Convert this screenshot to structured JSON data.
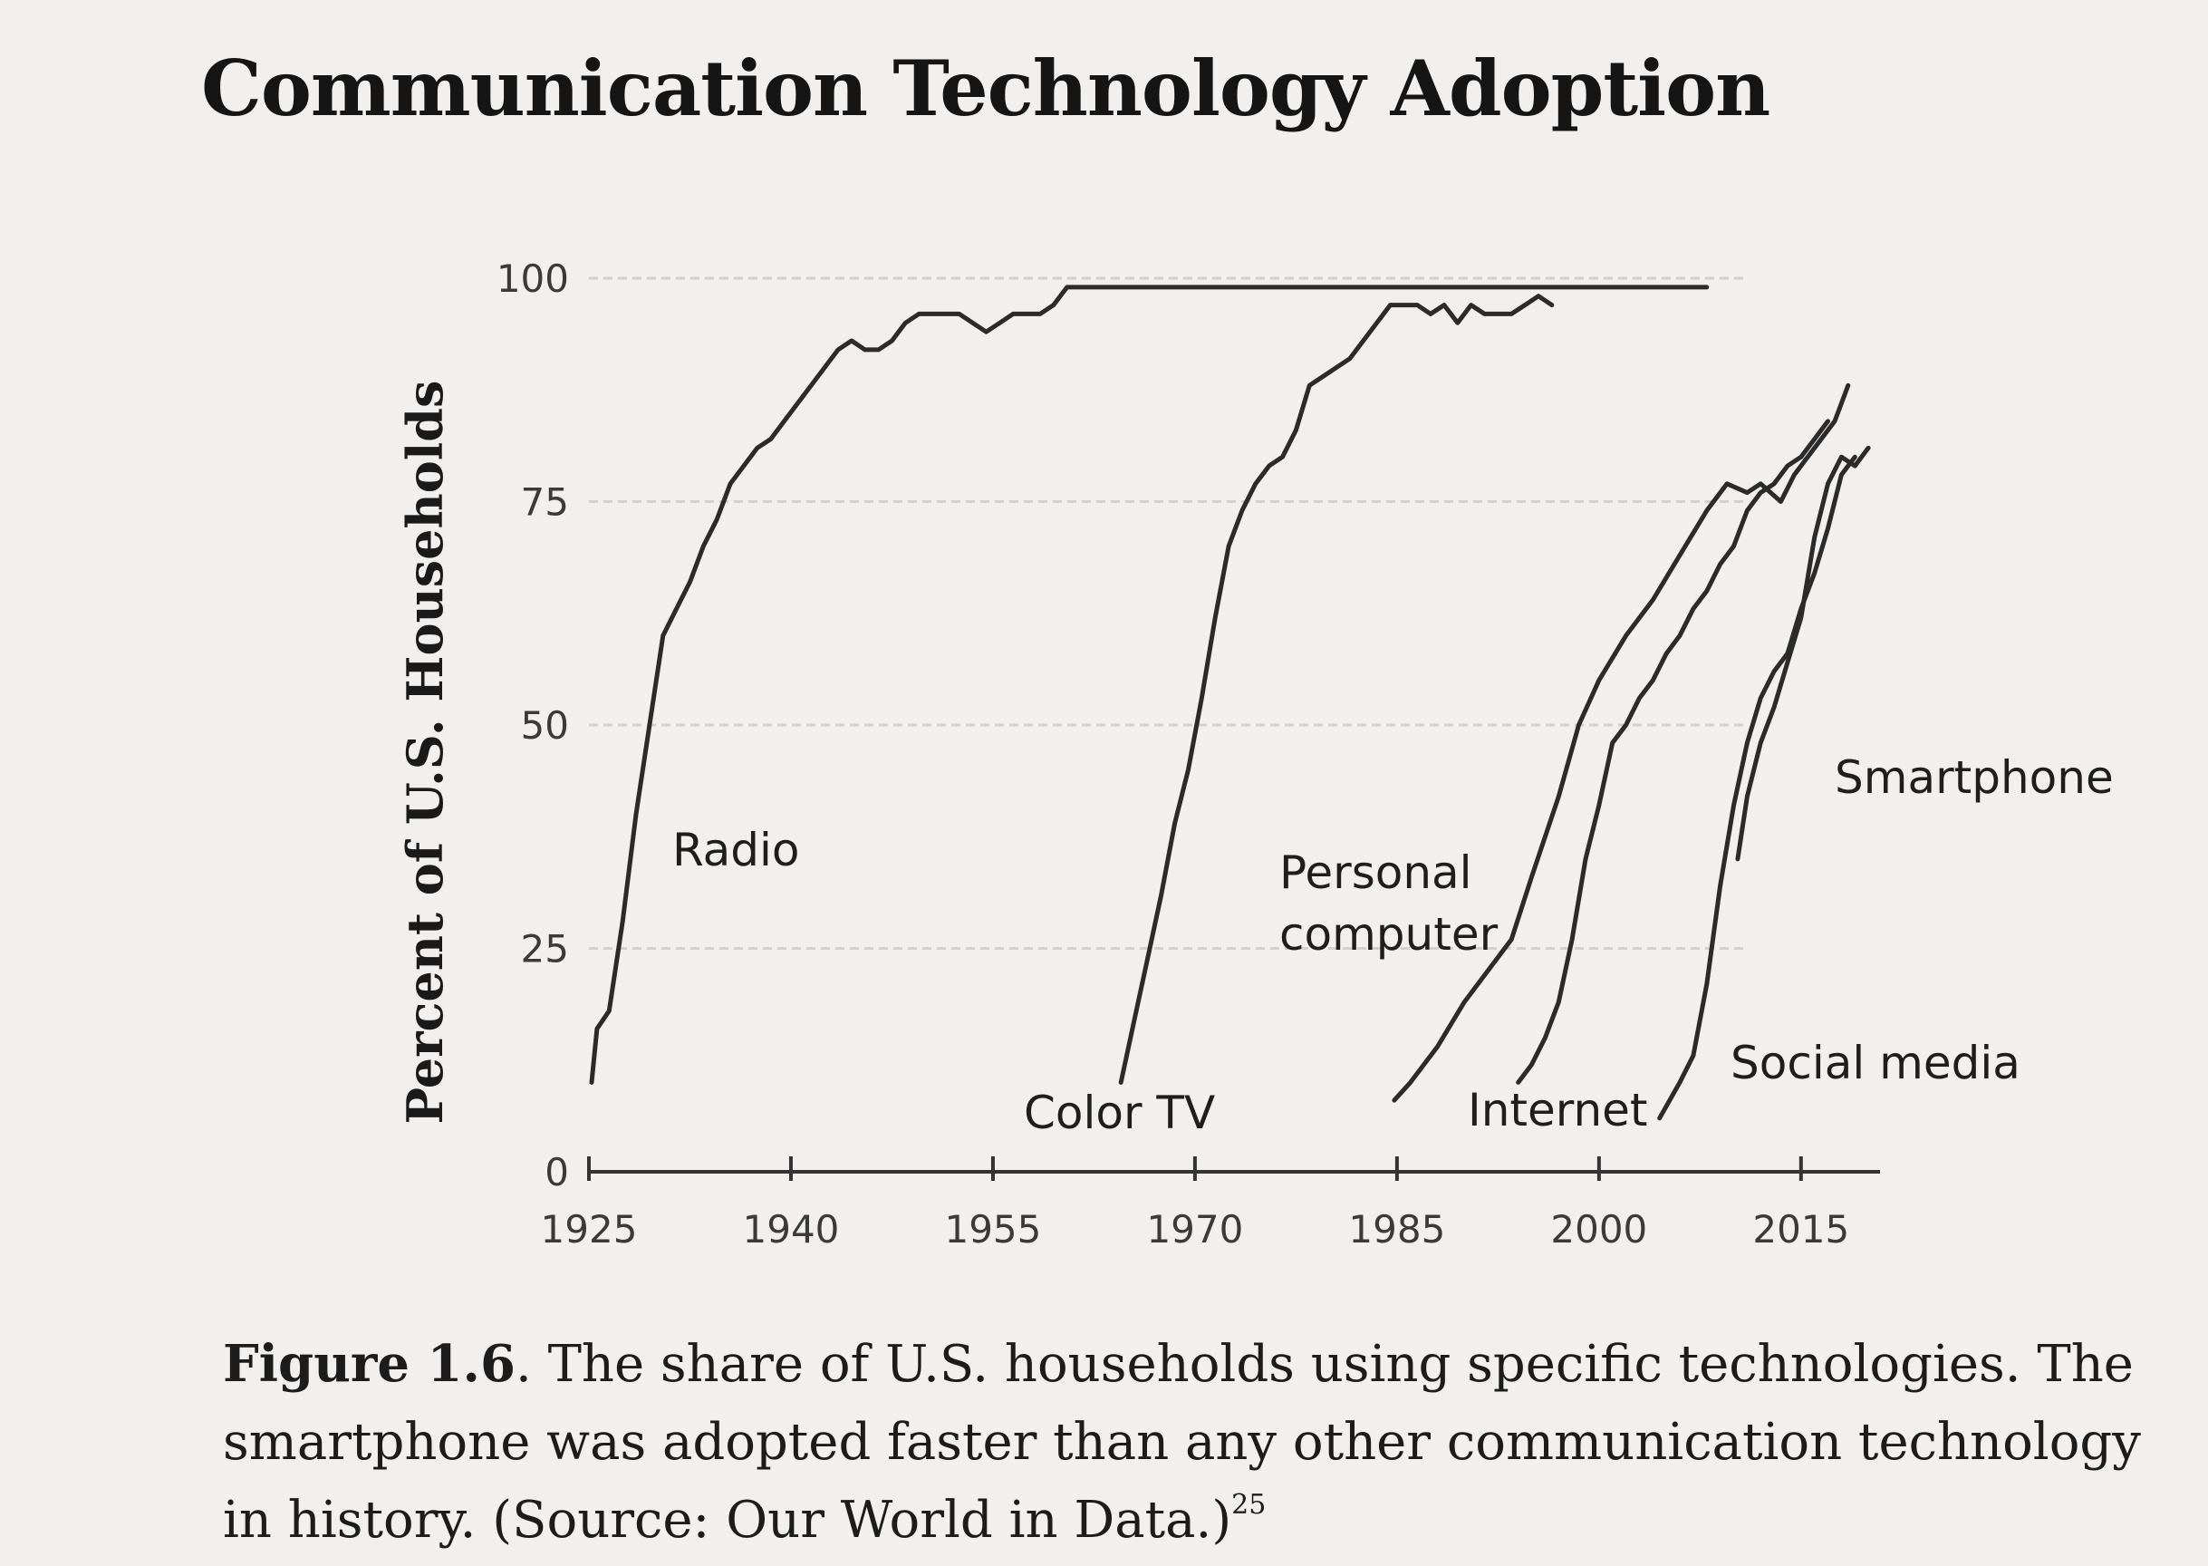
{
  "title": "Communication Technology Adoption",
  "caption": {
    "figure_label": "Figure 1.6",
    "text": ". The share of U.S. households using specific technologies. The smartphone was adopted faster than any other communication technology in history. (Source: Our World in Data.)",
    "footnote": "25"
  },
  "chart_data": {
    "type": "line",
    "title": "Communication Technology Adoption",
    "xlabel": "",
    "ylabel": "Percent of U.S. Households",
    "xlim": [
      1925,
      2021
    ],
    "ylim": [
      0,
      100
    ],
    "x_ticks": [
      "1925",
      "1940",
      "1955",
      "1970",
      "1985",
      "2000",
      "2015"
    ],
    "y_ticks": [
      "0",
      "25",
      "50",
      "75",
      "100"
    ],
    "grid": true,
    "legend": "none",
    "series": [
      {
        "name": "Radio",
        "points": [
          [
            1925.2,
            10
          ],
          [
            1925.6,
            16
          ],
          [
            1926.5,
            18
          ],
          [
            1927.5,
            28
          ],
          [
            1928.5,
            40
          ],
          [
            1929.5,
            50
          ],
          [
            1930.5,
            60
          ],
          [
            1931.5,
            63
          ],
          [
            1932.5,
            66
          ],
          [
            1933.5,
            70
          ],
          [
            1934.5,
            73
          ],
          [
            1935.5,
            77
          ],
          [
            1936.5,
            79
          ],
          [
            1937.5,
            81
          ],
          [
            1938.5,
            82
          ],
          [
            1939.5,
            84
          ],
          [
            1940.5,
            86
          ],
          [
            1941.5,
            88
          ],
          [
            1942.5,
            90
          ],
          [
            1943.5,
            92
          ],
          [
            1944.5,
            93
          ],
          [
            1945.5,
            92
          ],
          [
            1946.5,
            92
          ],
          [
            1947.5,
            93
          ],
          [
            1948.5,
            95
          ],
          [
            1949.5,
            96
          ],
          [
            1950.5,
            96
          ],
          [
            1951.5,
            96
          ],
          [
            1952.5,
            96
          ],
          [
            1953.5,
            95
          ],
          [
            1954.5,
            94
          ],
          [
            1955.5,
            95
          ],
          [
            1956.5,
            96
          ],
          [
            1957.5,
            96
          ],
          [
            1958.5,
            96
          ],
          [
            1959.5,
            97
          ],
          [
            1960.5,
            99
          ],
          [
            1962,
            99
          ],
          [
            1970,
            99
          ],
          [
            1980,
            99
          ],
          [
            1990,
            99
          ],
          [
            2000,
            99
          ],
          [
            2006,
            99
          ],
          [
            2008,
            99
          ]
        ]
      },
      {
        "name": "Color TV",
        "points": [
          [
            1964.5,
            10
          ],
          [
            1965.5,
            17
          ],
          [
            1966.5,
            24
          ],
          [
            1967.5,
            31
          ],
          [
            1968.5,
            39
          ],
          [
            1969.5,
            45
          ],
          [
            1970.5,
            53
          ],
          [
            1971.5,
            62
          ],
          [
            1972.5,
            70
          ],
          [
            1973.5,
            74
          ],
          [
            1974.5,
            77
          ],
          [
            1975.5,
            79
          ],
          [
            1976.5,
            80
          ],
          [
            1977.5,
            83
          ],
          [
            1978.5,
            88
          ],
          [
            1979.5,
            89
          ],
          [
            1980.5,
            90
          ],
          [
            1981.5,
            91
          ],
          [
            1982.5,
            93
          ],
          [
            1983.5,
            95
          ],
          [
            1984.5,
            97
          ],
          [
            1985.5,
            97
          ],
          [
            1986.5,
            97
          ],
          [
            1987.5,
            96
          ],
          [
            1988.5,
            97
          ],
          [
            1989.5,
            95
          ],
          [
            1990.5,
            97
          ],
          [
            1991.5,
            96
          ],
          [
            1992.5,
            96
          ],
          [
            1993.5,
            96
          ],
          [
            1994.5,
            97
          ],
          [
            1995.5,
            98
          ],
          [
            1996.5,
            97
          ]
        ]
      },
      {
        "name": "Personal computer",
        "points": [
          [
            1984.8,
            8
          ],
          [
            1986,
            10
          ],
          [
            1988,
            14
          ],
          [
            1990,
            19
          ],
          [
            1992,
            23
          ],
          [
            1993.5,
            26
          ],
          [
            1995,
            33
          ],
          [
            1997,
            42
          ],
          [
            1998.5,
            50
          ],
          [
            2000,
            55
          ],
          [
            2002,
            60
          ],
          [
            2004,
            64
          ],
          [
            2006,
            69
          ],
          [
            2008,
            74
          ],
          [
            2009.5,
            77
          ],
          [
            2011,
            76
          ],
          [
            2012,
            77
          ],
          [
            2013.5,
            75
          ],
          [
            2014.5,
            78
          ],
          [
            2015.5,
            80
          ],
          [
            2016.5,
            82
          ],
          [
            2017.5,
            84
          ],
          [
            2018.5,
            88
          ]
        ]
      },
      {
        "name": "Internet",
        "points": [
          [
            1994,
            10
          ],
          [
            1995,
            12
          ],
          [
            1996,
            15
          ],
          [
            1997,
            19
          ],
          [
            1998,
            26
          ],
          [
            1999,
            35
          ],
          [
            2000,
            41
          ],
          [
            2001,
            48
          ],
          [
            2002,
            50
          ],
          [
            2003,
            53
          ],
          [
            2004,
            55
          ],
          [
            2005,
            58
          ],
          [
            2006,
            60
          ],
          [
            2007,
            63
          ],
          [
            2008,
            65
          ],
          [
            2009,
            68
          ],
          [
            2010,
            70
          ],
          [
            2011,
            74
          ],
          [
            2012,
            76
          ],
          [
            2013,
            77
          ],
          [
            2014,
            79
          ],
          [
            2015,
            80
          ],
          [
            2016,
            82
          ],
          [
            2017,
            84
          ]
        ]
      },
      {
        "name": "Social media",
        "points": [
          [
            2004.5,
            6
          ],
          [
            2006,
            10
          ],
          [
            2007,
            13
          ],
          [
            2008,
            21
          ],
          [
            2009,
            32
          ],
          [
            2010,
            41
          ],
          [
            2011,
            48
          ],
          [
            2012,
            53
          ],
          [
            2013,
            56
          ],
          [
            2014,
            58
          ],
          [
            2015,
            63
          ],
          [
            2016,
            67
          ],
          [
            2017,
            72
          ],
          [
            2018,
            78
          ],
          [
            2019,
            80
          ]
        ]
      },
      {
        "name": "Smartphone",
        "points": [
          [
            2010.3,
            35
          ],
          [
            2011,
            42
          ],
          [
            2012,
            48
          ],
          [
            2013,
            52
          ],
          [
            2014,
            57
          ],
          [
            2015,
            62
          ],
          [
            2016,
            71
          ],
          [
            2017,
            77
          ],
          [
            2018,
            80
          ],
          [
            2019,
            79
          ],
          [
            2020,
            81
          ]
        ]
      }
    ]
  }
}
